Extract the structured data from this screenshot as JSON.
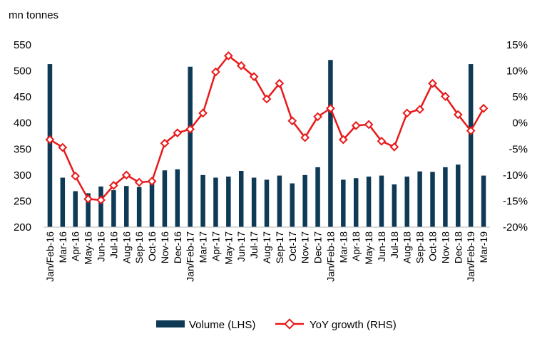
{
  "chart_data": {
    "type": "bar+line",
    "title": "",
    "unit_label": "mn tonnes",
    "categories": [
      "Jan/Feb-16",
      "Mar-16",
      "Apr-16",
      "May-16",
      "Jun-16",
      "Jul-16",
      "Aug-16",
      "Sep-16",
      "Oct-16",
      "Nov-16",
      "Dec-16",
      "Jan/Feb-17",
      "Mar-17",
      "Apr-17",
      "May-17",
      "Jun-17",
      "Jul-17",
      "Aug-17",
      "Sep-17",
      "Oct-17",
      "Nov-17",
      "Dec-17",
      "Jan/Feb-18",
      "Mar-18",
      "Apr-18",
      "May-18",
      "Jun-18",
      "Jul-18",
      "Aug-18",
      "Sep-18",
      "Oct-18",
      "Nov-18",
      "Dec-18",
      "Jan/Feb-19",
      "Mar-19"
    ],
    "series": [
      {
        "name": "Volume (LHS)",
        "type": "bar",
        "axis": "left",
        "color": "#0f3a56",
        "values": [
          513,
          295,
          269,
          265,
          278,
          271,
          279,
          277,
          284,
          309,
          311,
          508,
          300,
          295,
          297,
          308,
          295,
          291,
          299,
          284,
          300,
          315,
          521,
          291,
          294,
          297,
          299,
          282,
          297,
          307,
          306,
          315,
          320,
          513,
          299
        ]
      },
      {
        "name": "YoY growth (RHS)",
        "type": "line",
        "axis": "right",
        "color": "#e8191a",
        "values": [
          -3.2,
          -4.7,
          -10.2,
          -14.6,
          -14.8,
          -12.0,
          -10.0,
          -11.4,
          -11.2,
          -3.9,
          -1.9,
          -1.2,
          1.9,
          9.8,
          12.9,
          11.0,
          8.9,
          4.6,
          7.6,
          0.4,
          -2.8,
          1.2,
          2.8,
          -3.2,
          -0.5,
          -0.3,
          -3.5,
          -4.6,
          1.9,
          2.6,
          7.6,
          5.1,
          1.6,
          -1.5,
          2.8
        ]
      }
    ],
    "y_left": {
      "min": 200,
      "max": 550,
      "ticks": [
        "200",
        "250",
        "300",
        "350",
        "400",
        "450",
        "500",
        "550"
      ]
    },
    "y_right": {
      "min": -20,
      "max": 15,
      "ticks": [
        "-20%",
        "-15%",
        "-10%",
        "-5%",
        "0%",
        "5%",
        "10%",
        "15%"
      ]
    },
    "grid": false,
    "legend_position": "bottom"
  }
}
